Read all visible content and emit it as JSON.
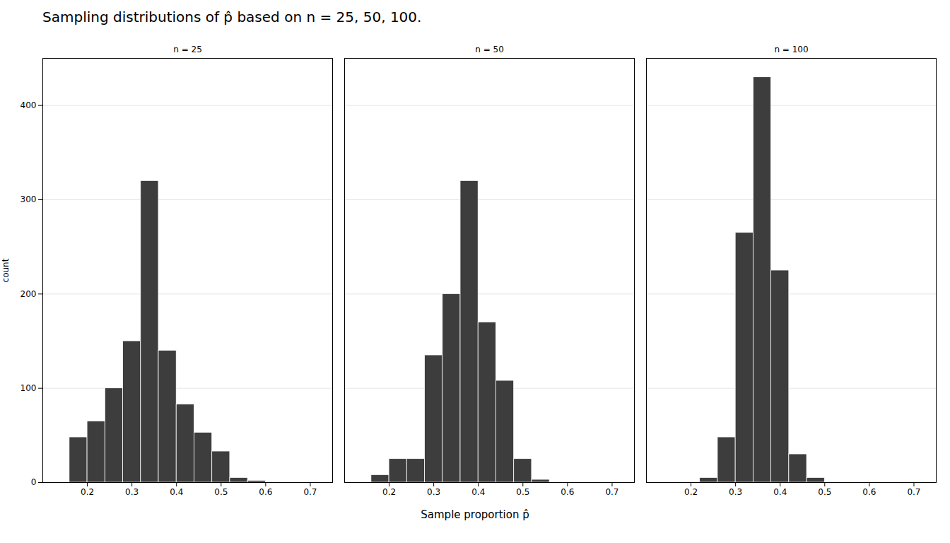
{
  "chart_data": {
    "type": "histogram",
    "title": "Sampling distributions of p̂ based on n = 25, 50, 100.",
    "xlabel": "Sample proportion p̂",
    "ylabel": "count",
    "series": [
      {
        "name": "n = 25",
        "color": "#3d3d3d",
        "bins": [
          0.16,
          0.2,
          0.24,
          0.28,
          0.32,
          0.36,
          0.4,
          0.44,
          0.48,
          0.52,
          0.56,
          0.6
        ],
        "values": [
          48,
          65,
          100,
          150,
          320,
          140,
          83,
          53,
          33,
          5,
          2
        ]
      },
      {
        "name": "n = 50",
        "color": "#3d3d3d",
        "bins": [
          0.16,
          0.2,
          0.24,
          0.28,
          0.32,
          0.36,
          0.4,
          0.44,
          0.48,
          0.52,
          0.56
        ],
        "values": [
          8,
          25,
          25,
          135,
          200,
          320,
          170,
          108,
          25,
          3
        ]
      },
      {
        "name": "n = 100",
        "color": "#3d3d3d",
        "bins": [
          0.22,
          0.26,
          0.3,
          0.34,
          0.38,
          0.42,
          0.46,
          0.5
        ],
        "values": [
          5,
          48,
          265,
          430,
          225,
          30,
          5
        ]
      }
    ],
    "xlim": [
      0.1,
      0.75
    ],
    "xticks": [
      0.2,
      0.3,
      0.4,
      0.5,
      0.6,
      0.7
    ],
    "ylim": [
      0,
      450
    ],
    "yticks": [
      0,
      100,
      200,
      300,
      400
    ],
    "grid": true
  }
}
